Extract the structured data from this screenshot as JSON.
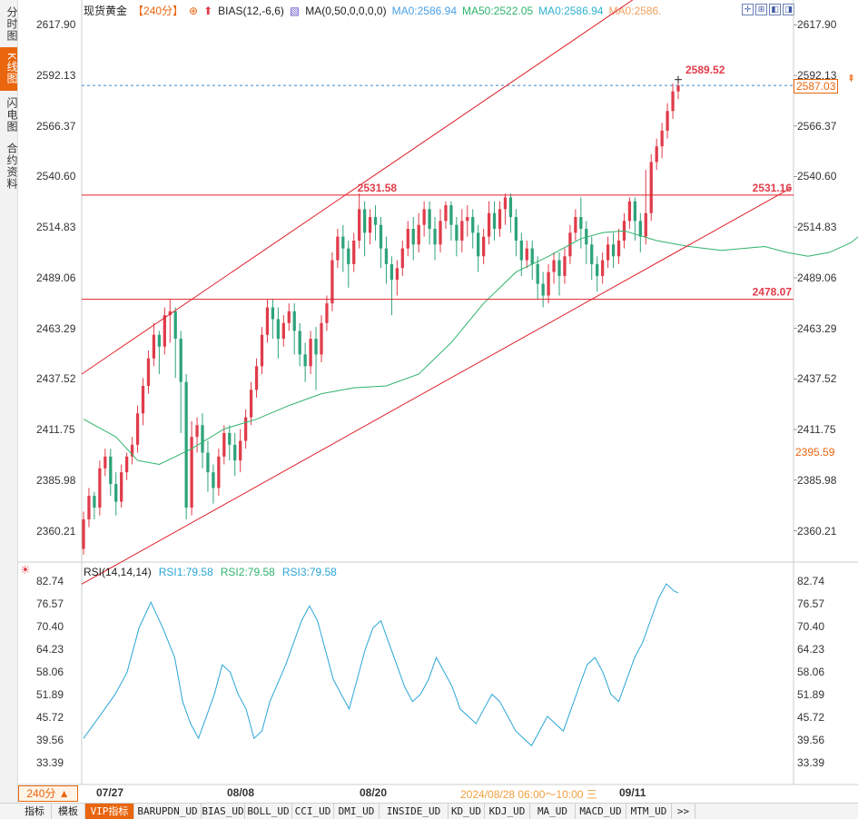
{
  "side_tabs": [
    {
      "label": "分时图",
      "active": false
    },
    {
      "label": "K线图",
      "active": true
    },
    {
      "label": "闪电图",
      "active": false
    },
    {
      "label": "合约资料",
      "active": false
    }
  ],
  "header": {
    "title": "现货黄金",
    "period": "【240分】",
    "bias": "BIAS(12,-6,6)",
    "ma_params": "MA(0,50,0,0,0,0)",
    "ma_values": [
      {
        "text": "MA0:2586.94",
        "color": "#4aa0e6"
      },
      {
        "text": "MA50:2522.05",
        "color": "#2fb36b"
      },
      {
        "text": "MA0:2586.94",
        "color": "#2fb2d0"
      },
      {
        "text": "MA0:2586.",
        "color": "#f0a060"
      }
    ]
  },
  "price_axis": {
    "labels": [
      "2617.90",
      "2592.13",
      "2566.37",
      "2540.60",
      "2514.83",
      "2489.06",
      "2463.29",
      "2437.52",
      "2411.75",
      "2385.98",
      "2360.21"
    ],
    "last_price": "2587.03",
    "second_price": "2395.59"
  },
  "rsi_panel": {
    "title": "RSI(14,14,14)",
    "rsi1": "RSI1:79.58",
    "rsi2": "RSI2:79.58",
    "rsi3": "RSI3:79.58",
    "labels": [
      "82.74",
      "76.57",
      "70.40",
      "64.23",
      "58.06",
      "51.89",
      "45.72",
      "39.56",
      "33.39"
    ]
  },
  "date_axis": {
    "labels": [
      "07/27",
      "08/08",
      "08/20",
      "09/11"
    ],
    "cursor_text": "2024/08/28 06:00～10:00 三"
  },
  "period_tag": "240分 ▲",
  "bottom_tabs": [
    {
      "label": "指标",
      "active": false
    },
    {
      "label": "模板",
      "active": false
    },
    {
      "label": "VIP指标",
      "active": true
    },
    {
      "label": "BARUPDN_UD",
      "active": false
    },
    {
      "label": "BIAS_UD",
      "active": false
    },
    {
      "label": "BOLL_UD",
      "active": false
    },
    {
      "label": "CCI_UD",
      "active": false
    },
    {
      "label": "DMI_UD",
      "active": false
    },
    {
      "label": "INSIDE_UD",
      "active": false
    },
    {
      "label": "KD_UD",
      "active": false
    },
    {
      "label": "KDJ_UD",
      "active": false
    },
    {
      "label": "MA_UD",
      "active": false
    },
    {
      "label": "MACD_UD",
      "active": false
    },
    {
      "label": "MTM_UD",
      "active": false
    },
    {
      "label": ">>",
      "active": false
    }
  ],
  "colors": {
    "up": "#e03c4a",
    "down": "#2ea37a",
    "ma50": "#2fb36b",
    "rsi": "#2aa6d6",
    "trend": "#e0202a",
    "accent": "#e9650e"
  },
  "chart_data": [
    {
      "type": "candlestick",
      "title": "现货黄金 240分",
      "ylim": [
        2347.5,
        2625.0
      ],
      "yticks": [
        2617.9,
        2592.13,
        2566.37,
        2540.6,
        2514.83,
        2489.06,
        2463.29,
        2437.52,
        2411.75,
        2385.98,
        2360.21
      ],
      "x_ticks": [
        "07/27",
        "08/08",
        "08/20",
        "09/11"
      ],
      "annotations": [
        {
          "text": "2589.52",
          "kind": "high"
        },
        {
          "text": "2531.58",
          "kind": "swing-high"
        },
        {
          "text": "2531.16",
          "kind": "resistance-line"
        },
        {
          "text": "2478.07",
          "kind": "support-line"
        }
      ],
      "horizontal_lines": [
        2531.16,
        2478.07,
        2587.03
      ],
      "channel": [
        {
          "name": "upper",
          "from": [
            0,
            2440.0
          ],
          "to": [
            105,
            2637.0
          ]
        },
        {
          "name": "lower",
          "from": [
            0,
            2333.0
          ],
          "to": [
            131,
            2535.0
          ]
        }
      ],
      "ma50": [
        [
          0,
          2417
        ],
        [
          6,
          2408
        ],
        [
          10,
          2396
        ],
        [
          14,
          2394
        ],
        [
          20,
          2402
        ],
        [
          26,
          2412
        ],
        [
          32,
          2417
        ],
        [
          38,
          2424
        ],
        [
          44,
          2430
        ],
        [
          50,
          2433
        ],
        [
          56,
          2434
        ],
        [
          62,
          2440
        ],
        [
          68,
          2456
        ],
        [
          74,
          2476
        ],
        [
          80,
          2492
        ],
        [
          86,
          2500
        ],
        [
          92,
          2509
        ],
        [
          96,
          2512
        ],
        [
          100,
          2513
        ],
        [
          106,
          2508
        ],
        [
          112,
          2505
        ],
        [
          118,
          2503
        ],
        [
          122,
          2504
        ],
        [
          126,
          2505
        ],
        [
          130,
          2502
        ],
        [
          134,
          2500
        ],
        [
          138,
          2502
        ],
        [
          142,
          2507
        ],
        [
          146,
          2516
        ]
      ],
      "candles": [
        [
          2351,
          2366,
          2348,
          2370
        ],
        [
          2366,
          2378,
          2362,
          2382
        ],
        [
          2378,
          2372,
          2366,
          2380
        ],
        [
          2372,
          2392,
          2368,
          2396
        ],
        [
          2392,
          2398,
          2388,
          2402
        ],
        [
          2398,
          2384,
          2378,
          2402
        ],
        [
          2384,
          2375,
          2368,
          2390
        ],
        [
          2375,
          2390,
          2372,
          2394
        ],
        [
          2390,
          2398,
          2386,
          2400
        ],
        [
          2398,
          2404,
          2394,
          2408
        ],
        [
          2404,
          2420,
          2400,
          2424
        ],
        [
          2420,
          2434,
          2414,
          2438
        ],
        [
          2434,
          2448,
          2430,
          2452
        ],
        [
          2448,
          2460,
          2444,
          2466
        ],
        [
          2460,
          2454,
          2440,
          2462
        ],
        [
          2454,
          2470,
          2450,
          2474
        ],
        [
          2470,
          2472,
          2456,
          2478
        ],
        [
          2472,
          2458,
          2438,
          2474
        ],
        [
          2458,
          2436,
          2410,
          2462
        ],
        [
          2436,
          2372,
          2366,
          2440
        ],
        [
          2372,
          2408,
          2368,
          2416
        ],
        [
          2408,
          2414,
          2400,
          2418
        ],
        [
          2414,
          2400,
          2392,
          2420
        ],
        [
          2400,
          2390,
          2380,
          2406
        ],
        [
          2390,
          2382,
          2374,
          2394
        ],
        [
          2382,
          2398,
          2378,
          2402
        ],
        [
          2398,
          2410,
          2394,
          2414
        ],
        [
          2410,
          2404,
          2396,
          2414
        ],
        [
          2404,
          2396,
          2388,
          2410
        ],
        [
          2396,
          2406,
          2390,
          2412
        ],
        [
          2406,
          2418,
          2402,
          2422
        ],
        [
          2418,
          2432,
          2414,
          2436
        ],
        [
          2432,
          2444,
          2428,
          2448
        ],
        [
          2444,
          2460,
          2440,
          2464
        ],
        [
          2460,
          2474,
          2456,
          2478
        ],
        [
          2474,
          2468,
          2458,
          2478
        ],
        [
          2468,
          2458,
          2448,
          2474
        ],
        [
          2458,
          2466,
          2454,
          2470
        ],
        [
          2466,
          2472,
          2462,
          2476
        ],
        [
          2472,
          2462,
          2450,
          2476
        ],
        [
          2462,
          2450,
          2444,
          2466
        ],
        [
          2450,
          2444,
          2436,
          2456
        ],
        [
          2444,
          2458,
          2440,
          2462
        ],
        [
          2458,
          2450,
          2432,
          2464
        ],
        [
          2450,
          2466,
          2446,
          2470
        ],
        [
          2466,
          2476,
          2462,
          2480
        ],
        [
          2476,
          2498,
          2472,
          2502
        ],
        [
          2498,
          2510,
          2494,
          2514
        ],
        [
          2510,
          2504,
          2492,
          2516
        ],
        [
          2504,
          2496,
          2484,
          2508
        ],
        [
          2496,
          2508,
          2492,
          2512
        ],
        [
          2508,
          2524,
          2504,
          2532
        ],
        [
          2524,
          2512,
          2500,
          2528
        ],
        [
          2512,
          2520,
          2506,
          2524
        ],
        [
          2520,
          2516,
          2508,
          2526
        ],
        [
          2516,
          2504,
          2494,
          2520
        ],
        [
          2504,
          2496,
          2486,
          2510
        ],
        [
          2496,
          2488,
          2470,
          2500
        ],
        [
          2488,
          2494,
          2480,
          2498
        ],
        [
          2494,
          2504,
          2490,
          2508
        ],
        [
          2504,
          2514,
          2500,
          2518
        ],
        [
          2514,
          2506,
          2498,
          2520
        ],
        [
          2506,
          2516,
          2502,
          2522
        ],
        [
          2516,
          2524,
          2510,
          2528
        ],
        [
          2524,
          2514,
          2506,
          2528
        ],
        [
          2514,
          2506,
          2498,
          2520
        ],
        [
          2506,
          2518,
          2502,
          2524
        ],
        [
          2518,
          2526,
          2514,
          2528
        ],
        [
          2526,
          2516,
          2508,
          2528
        ],
        [
          2516,
          2508,
          2500,
          2520
        ],
        [
          2508,
          2518,
          2502,
          2524
        ],
        [
          2518,
          2520,
          2510,
          2526
        ],
        [
          2520,
          2512,
          2504,
          2524
        ],
        [
          2512,
          2500,
          2492,
          2516
        ],
        [
          2500,
          2510,
          2496,
          2514
        ],
        [
          2510,
          2522,
          2506,
          2528
        ],
        [
          2522,
          2514,
          2508,
          2528
        ],
        [
          2514,
          2524,
          2510,
          2528
        ],
        [
          2524,
          2530,
          2516,
          2532
        ],
        [
          2530,
          2520,
          2512,
          2532
        ],
        [
          2520,
          2508,
          2500,
          2524
        ],
        [
          2508,
          2498,
          2490,
          2512
        ],
        [
          2498,
          2504,
          2494,
          2508
        ],
        [
          2504,
          2496,
          2488,
          2508
        ],
        [
          2496,
          2486,
          2478,
          2500
        ],
        [
          2486,
          2480,
          2474,
          2492
        ],
        [
          2480,
          2492,
          2476,
          2496
        ],
        [
          2492,
          2498,
          2486,
          2502
        ],
        [
          2498,
          2490,
          2480,
          2502
        ],
        [
          2490,
          2500,
          2486,
          2504
        ],
        [
          2500,
          2512,
          2496,
          2516
        ],
        [
          2512,
          2520,
          2508,
          2524
        ],
        [
          2520,
          2514,
          2504,
          2530
        ],
        [
          2514,
          2506,
          2496,
          2518
        ],
        [
          2506,
          2496,
          2488,
          2510
        ],
        [
          2496,
          2490,
          2482,
          2500
        ],
        [
          2490,
          2498,
          2486,
          2502
        ],
        [
          2498,
          2506,
          2494,
          2510
        ],
        [
          2506,
          2500,
          2494,
          2512
        ],
        [
          2500,
          2508,
          2496,
          2514
        ],
        [
          2508,
          2518,
          2504,
          2522
        ],
        [
          2518,
          2528,
          2514,
          2530
        ],
        [
          2528,
          2518,
          2508,
          2530
        ],
        [
          2518,
          2510,
          2502,
          2522
        ],
        [
          2510,
          2522,
          2506,
          2544
        ],
        [
          2522,
          2548,
          2518,
          2552
        ],
        [
          2548,
          2556,
          2544,
          2560
        ],
        [
          2556,
          2564,
          2550,
          2568
        ],
        [
          2564,
          2574,
          2560,
          2578
        ],
        [
          2574,
          2584,
          2570,
          2588
        ],
        [
          2584,
          2587,
          2580,
          2590
        ]
      ],
      "rsi": [
        [
          0,
          40
        ],
        [
          4,
          46
        ],
        [
          8,
          52
        ],
        [
          11,
          58
        ],
        [
          14,
          70
        ],
        [
          17,
          77
        ],
        [
          20,
          70
        ],
        [
          23,
          62
        ],
        [
          25,
          50
        ],
        [
          27,
          44
        ],
        [
          29,
          40
        ],
        [
          31,
          46
        ],
        [
          33,
          52
        ],
        [
          35,
          60
        ],
        [
          37,
          58
        ],
        [
          39,
          52
        ],
        [
          41,
          48
        ],
        [
          43,
          40
        ],
        [
          45,
          42
        ],
        [
          47,
          50
        ],
        [
          49,
          55
        ],
        [
          51,
          60
        ],
        [
          53,
          66
        ],
        [
          55,
          72
        ],
        [
          57,
          76
        ],
        [
          59,
          72
        ],
        [
          61,
          64
        ],
        [
          63,
          56
        ],
        [
          65,
          52
        ],
        [
          67,
          48
        ],
        [
          69,
          56
        ],
        [
          71,
          64
        ],
        [
          73,
          70
        ],
        [
          75,
          72
        ],
        [
          77,
          66
        ],
        [
          79,
          60
        ],
        [
          81,
          54
        ],
        [
          83,
          50
        ],
        [
          85,
          52
        ],
        [
          87,
          56
        ],
        [
          89,
          62
        ],
        [
          91,
          58
        ],
        [
          93,
          54
        ],
        [
          95,
          48
        ],
        [
          97,
          46
        ],
        [
          99,
          44
        ],
        [
          101,
          48
        ],
        [
          103,
          52
        ],
        [
          105,
          50
        ],
        [
          107,
          46
        ],
        [
          109,
          42
        ],
        [
          111,
          40
        ],
        [
          113,
          38
        ],
        [
          115,
          42
        ],
        [
          117,
          46
        ],
        [
          119,
          44
        ],
        [
          121,
          42
        ],
        [
          123,
          48
        ],
        [
          125,
          54
        ],
        [
          127,
          60
        ],
        [
          129,
          62
        ],
        [
          131,
          58
        ],
        [
          133,
          52
        ],
        [
          135,
          50
        ],
        [
          137,
          56
        ],
        [
          139,
          62
        ],
        [
          141,
          66
        ],
        [
          143,
          72
        ],
        [
          145,
          78
        ],
        [
          147,
          82
        ],
        [
          149,
          80
        ],
        [
          150,
          79.58
        ]
      ]
    }
  ]
}
